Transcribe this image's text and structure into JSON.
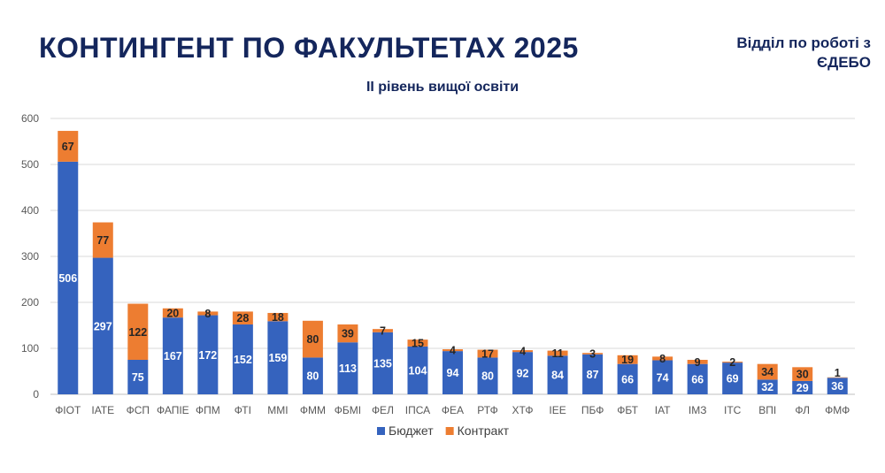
{
  "header": {
    "title": "КОНТИНГЕНТ ПО ФАКУЛЬТЕТАХ 2025",
    "department": "Відділ по роботі з ЄДЕБО"
  },
  "chart_data": {
    "type": "bar",
    "stacked": true,
    "title": "ІІ рівень вищої освіти",
    "xlabel": "",
    "ylabel": "",
    "ylim": [
      0,
      600
    ],
    "yticks": [
      0,
      100,
      200,
      300,
      400,
      500,
      600
    ],
    "grid": true,
    "legend_position": "bottom",
    "categories": [
      "ФІОТ",
      "ІАТЕ",
      "ФСП",
      "ФАПІЕ",
      "ФПМ",
      "ФТІ",
      "ММІ",
      "ФММ",
      "ФБМІ",
      "ФЕЛ",
      "ІПСА",
      "ФЕА",
      "РТФ",
      "ХТФ",
      "ІЕЕ",
      "ПБФ",
      "ФБТ",
      "ІАТ",
      "ІМЗ",
      "ІТС",
      "ВПІ",
      "ФЛ",
      "ФМФ"
    ],
    "series": [
      {
        "name": "Бюджет",
        "color": "#3563be",
        "values": [
          506,
          297,
          75,
          167,
          172,
          152,
          159,
          80,
          113,
          135,
          104,
          94,
          80,
          92,
          84,
          87,
          66,
          74,
          66,
          69,
          32,
          29,
          36
        ]
      },
      {
        "name": "Контракт",
        "color": "#ed7d31",
        "values": [
          67,
          77,
          122,
          20,
          8,
          28,
          18,
          80,
          39,
          7,
          15,
          4,
          17,
          4,
          11,
          3,
          19,
          8,
          9,
          2,
          34,
          30,
          1
        ]
      }
    ]
  }
}
